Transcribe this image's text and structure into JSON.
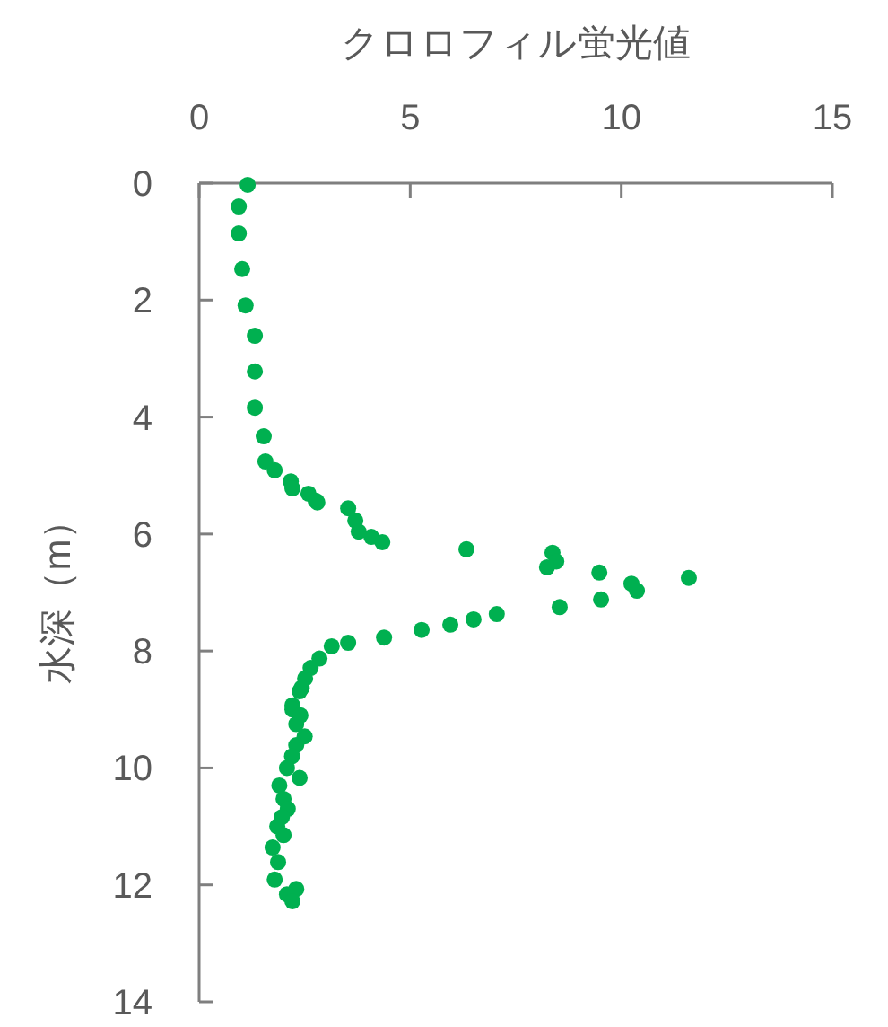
{
  "chart_data": {
    "type": "scatter",
    "xlabel": "クロロフィル蛍光値",
    "ylabel": "水深（m）",
    "xlim": [
      0,
      15
    ],
    "xticks": [
      0,
      5,
      10,
      15
    ],
    "ylim": [
      14,
      0
    ],
    "yticks": [
      0,
      2,
      4,
      6,
      8,
      10,
      12,
      14
    ],
    "grid": false,
    "marker": "circle",
    "series": [
      {
        "color": "#00b050",
        "x": [
          1.15,
          0.94,
          0.94,
          1.02,
          1.1,
          1.32,
          1.32,
          1.32,
          1.53,
          1.57,
          1.79,
          2.17,
          2.21,
          2.59,
          2.76,
          2.8,
          3.53,
          3.7,
          3.78,
          4.08,
          4.34,
          6.33,
          8.37,
          8.46,
          8.24,
          9.48,
          10.24,
          10.37,
          11.6,
          9.52,
          8.54,
          7.05,
          6.5,
          5.95,
          5.27,
          4.38,
          3.53,
          3.14,
          2.85,
          2.64,
          2.51,
          2.38,
          2.43,
          2.21,
          2.21,
          2.4,
          2.3,
          2.5,
          2.3,
          2.2,
          2.08,
          2.38,
          1.9,
          2.0,
          2.1,
          1.96,
          1.85,
          2.0,
          1.74,
          1.87,
          1.79,
          2.3,
          2.08,
          2.21
        ],
        "values": [
          0.03,
          0.4,
          0.86,
          1.47,
          2.09,
          2.61,
          3.22,
          3.84,
          4.33,
          4.76,
          4.91,
          5.1,
          5.22,
          5.31,
          5.43,
          5.46,
          5.56,
          5.77,
          5.96,
          6.05,
          6.14,
          6.26,
          6.32,
          6.47,
          6.57,
          6.66,
          6.85,
          6.97,
          6.75,
          7.12,
          7.25,
          7.37,
          7.46,
          7.55,
          7.64,
          7.77,
          7.86,
          7.92,
          8.13,
          8.29,
          8.47,
          8.69,
          8.63,
          8.93,
          9.0,
          9.1,
          9.25,
          9.46,
          9.61,
          9.8,
          10.0,
          10.17,
          10.3,
          10.53,
          10.7,
          10.84,
          11.0,
          11.15,
          11.36,
          11.61,
          11.91,
          12.07,
          12.16,
          12.28
        ]
      }
    ]
  }
}
